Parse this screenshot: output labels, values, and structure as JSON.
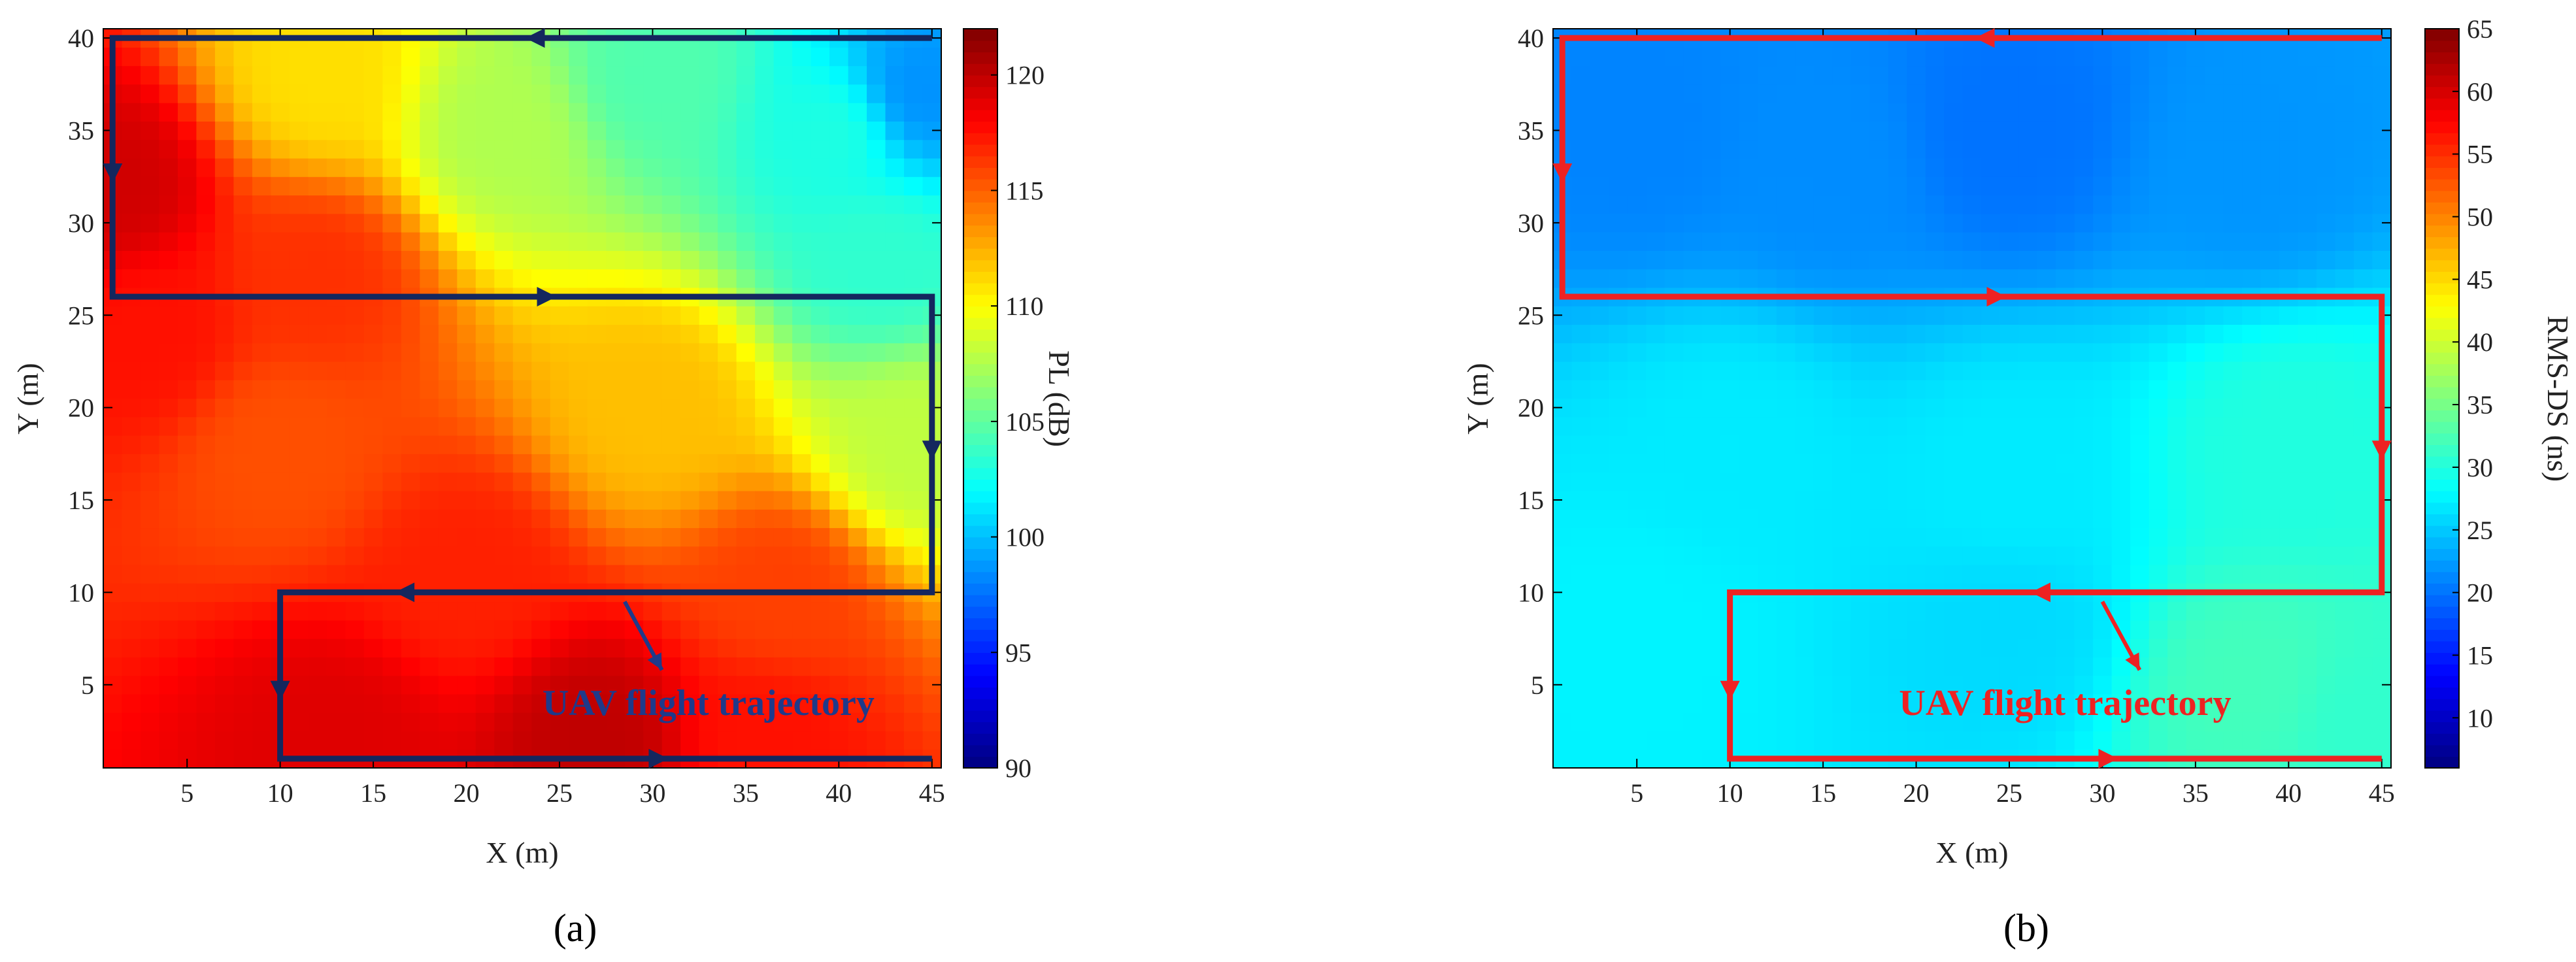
{
  "figure": {
    "panel_a_caption": "(a)",
    "panel_b_caption": "(b)"
  },
  "colors": {
    "path_a": "#14275e",
    "path_b": "#ee2222",
    "annotation_a": "#1f3a8a",
    "annotation_b": "#ee2222"
  },
  "chart_data": [
    {
      "type": "heatmap",
      "panel": "(a)",
      "title": "",
      "xlabel": "X (m)",
      "ylabel": "Y (m)",
      "colorbar_label": "PL (dB)",
      "xlim": [
        0.5,
        45.5
      ],
      "ylim": [
        0.5,
        40.5
      ],
      "xticks": [
        5,
        10,
        15,
        20,
        25,
        30,
        35,
        40,
        45
      ],
      "yticks": [
        5,
        10,
        15,
        20,
        25,
        30,
        35,
        40
      ],
      "clim": [
        90,
        122
      ],
      "colorbar_ticks": [
        90,
        95,
        100,
        105,
        110,
        115,
        120
      ],
      "colormap": "jet",
      "grid": false,
      "field_estimate": {
        "description": "PL approx values",
        "points": [
          {
            "x": 1,
            "y": 32,
            "v": 119.5
          },
          {
            "x": 3,
            "y": 24,
            "v": 117.5
          },
          {
            "x": 12,
            "y": 27,
            "v": 116.5
          },
          {
            "x": 13,
            "y": 2,
            "v": 119
          },
          {
            "x": 20,
            "y": 11,
            "v": 117
          },
          {
            "x": 27,
            "y": 2,
            "v": 120
          },
          {
            "x": 36,
            "y": 2,
            "v": 117.5
          },
          {
            "x": 37,
            "y": 10,
            "v": 116
          },
          {
            "x": 12,
            "y": 38,
            "v": 111
          },
          {
            "x": 22,
            "y": 35,
            "v": 107.5
          },
          {
            "x": 30,
            "y": 38,
            "v": 104.5
          },
          {
            "x": 40,
            "y": 35,
            "v": 103
          },
          {
            "x": 44,
            "y": 37,
            "v": 98.5
          },
          {
            "x": 42,
            "y": 28,
            "v": 103.5
          },
          {
            "x": 44,
            "y": 18,
            "v": 108
          },
          {
            "x": 30,
            "y": 20,
            "v": 112
          },
          {
            "x": 10,
            "y": 18,
            "v": 115.5
          }
        ]
      },
      "trajectory": {
        "points": [
          [
            45,
            40
          ],
          [
            1,
            40
          ],
          [
            1,
            26
          ],
          [
            45,
            26
          ],
          [
            45,
            10
          ],
          [
            10,
            10
          ],
          [
            10,
            1
          ],
          [
            45,
            1
          ]
        ],
        "direction_arrows": [
          [
            24,
            40
          ],
          [
            1,
            33
          ],
          [
            24,
            26
          ],
          [
            45,
            18
          ],
          [
            17,
            10
          ],
          [
            10,
            5
          ],
          [
            30,
            1
          ]
        ]
      },
      "annotation": {
        "text": "UAV flight trajectory",
        "text_anchor": [
          33,
          4
        ],
        "arrow_from": [
          28.5,
          9.5
        ],
        "arrow_to": [
          30.5,
          5.8
        ]
      }
    },
    {
      "type": "heatmap",
      "panel": "(b)",
      "title": "",
      "xlabel": "X (m)",
      "ylabel": "Y (m)",
      "colorbar_label": "RMS-DS (ns)",
      "xlim": [
        0.5,
        45.5
      ],
      "ylim": [
        0.5,
        40.5
      ],
      "xticks": [
        5,
        10,
        15,
        20,
        25,
        30,
        35,
        40,
        45
      ],
      "yticks": [
        5,
        10,
        15,
        20,
        25,
        30,
        35,
        40
      ],
      "clim": [
        6,
        65
      ],
      "colorbar_ticks": [
        10,
        15,
        20,
        25,
        30,
        35,
        40,
        45,
        50,
        55,
        60,
        65
      ],
      "colormap": "jet",
      "grid": false,
      "field_estimate": {
        "description": "RMS-DS approx values",
        "points": [
          {
            "x": 5,
            "y": 35,
            "v": 21
          },
          {
            "x": 15,
            "y": 33,
            "v": 21.5
          },
          {
            "x": 25,
            "y": 35,
            "v": 20
          },
          {
            "x": 38,
            "y": 33,
            "v": 22
          },
          {
            "x": 10,
            "y": 18,
            "v": 27
          },
          {
            "x": 25,
            "y": 16,
            "v": 27
          },
          {
            "x": 40,
            "y": 18,
            "v": 30
          },
          {
            "x": 5,
            "y": 8,
            "v": 27.5
          },
          {
            "x": 25,
            "y": 8,
            "v": 26
          },
          {
            "x": 38,
            "y": 5,
            "v": 32
          },
          {
            "x": 44,
            "y": 3,
            "v": 31
          }
        ]
      },
      "trajectory": {
        "points": [
          [
            45,
            40
          ],
          [
            1,
            40
          ],
          [
            1,
            26
          ],
          [
            45,
            26
          ],
          [
            45,
            10
          ],
          [
            10,
            10
          ],
          [
            10,
            1
          ],
          [
            45,
            1
          ]
        ],
        "direction_arrows": [
          [
            24,
            40
          ],
          [
            1,
            33
          ],
          [
            24,
            26
          ],
          [
            45,
            18
          ],
          [
            27,
            10
          ],
          [
            10,
            5
          ],
          [
            30,
            1
          ]
        ]
      },
      "annotation": {
        "text": "UAV flight trajectory",
        "text_anchor": [
          28,
          4
        ],
        "arrow_from": [
          30,
          9.5
        ],
        "arrow_to": [
          32,
          5.8
        ]
      }
    }
  ]
}
